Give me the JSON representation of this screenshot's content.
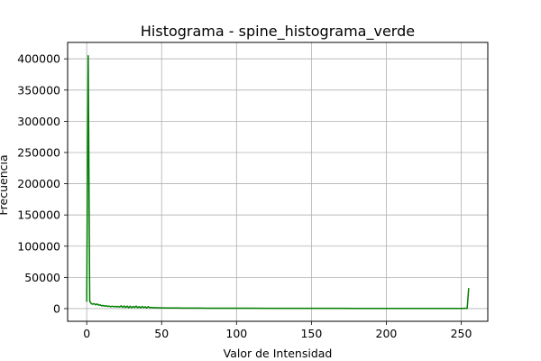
{
  "chart_data": {
    "type": "line",
    "title": "Histograma - spine_histograma_verde",
    "xlabel": "Valor de Intensidad",
    "ylabel": "Frecuencia",
    "xlim": [
      -12.75,
      267.75
    ],
    "ylim": [
      -20300,
      426300
    ],
    "xticks": [
      0,
      50,
      100,
      150,
      200,
      250
    ],
    "yticks": [
      0,
      50000,
      100000,
      150000,
      200000,
      250000,
      300000,
      350000,
      400000
    ],
    "grid": true,
    "series": [
      {
        "color": "#008000",
        "x": [
          0,
          1,
          2,
          3,
          4,
          5,
          6,
          7,
          8,
          9,
          10,
          11,
          12,
          13,
          14,
          15,
          16,
          17,
          18,
          19,
          20,
          21,
          22,
          23,
          24,
          25,
          26,
          27,
          28,
          29,
          30,
          31,
          32,
          33,
          34,
          35,
          36,
          37,
          38,
          39,
          40,
          41,
          42,
          43,
          44,
          45,
          50,
          55,
          60,
          65,
          70,
          75,
          80,
          90,
          100,
          110,
          120,
          130,
          140,
          150,
          160,
          170,
          180,
          190,
          200,
          210,
          220,
          230,
          240,
          250,
          253,
          254,
          255
        ],
        "values": [
          11000,
          405000,
          12000,
          8000,
          7000,
          8000,
          6000,
          7500,
          5500,
          6000,
          4500,
          5000,
          4000,
          4500,
          3500,
          4000,
          3000,
          3800,
          3200,
          3500,
          2800,
          3500,
          2500,
          4500,
          2000,
          4200,
          1800,
          4000,
          1500,
          3800,
          1500,
          3500,
          1800,
          4000,
          1500,
          3200,
          1200,
          3500,
          1500,
          3000,
          1000,
          3200,
          1500,
          2000,
          1500,
          1500,
          1200,
          1100,
          1000,
          900,
          800,
          800,
          750,
          700,
          650,
          600,
          550,
          500,
          500,
          450,
          400,
          400,
          350,
          350,
          300,
          300,
          300,
          250,
          250,
          300,
          500,
          500,
          33000
        ]
      }
    ]
  }
}
